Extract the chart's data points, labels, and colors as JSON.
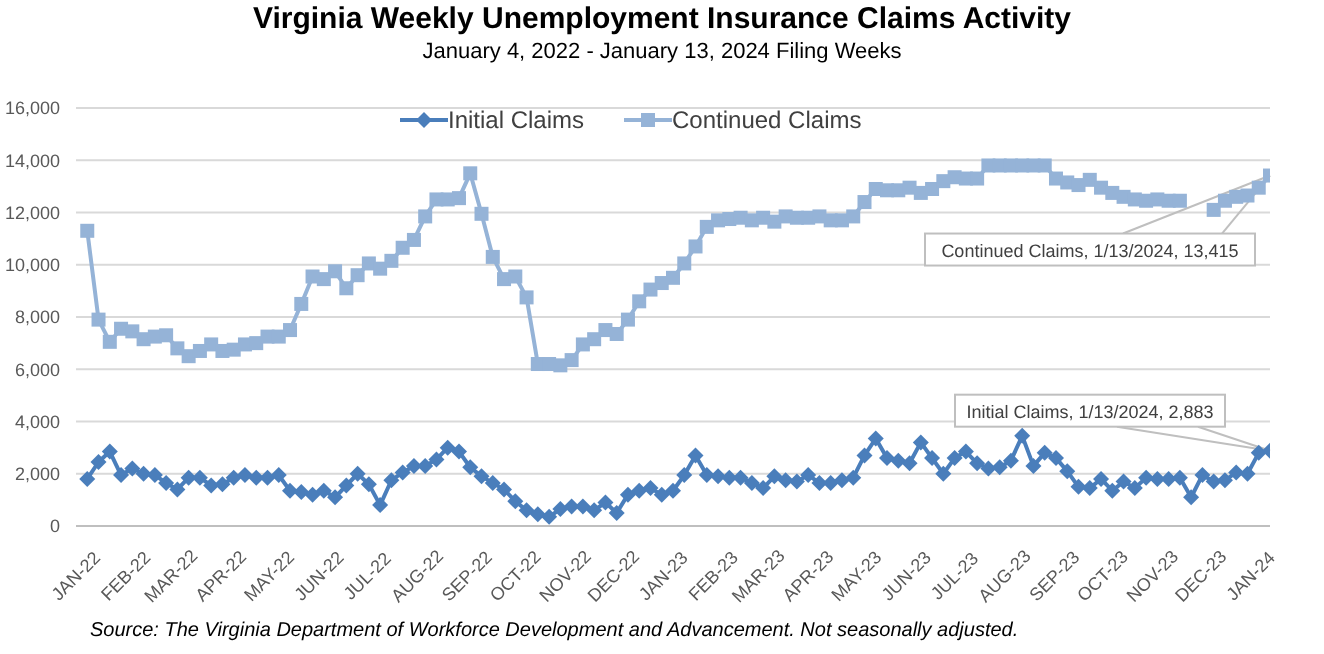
{
  "chart_data": {
    "type": "line",
    "title": "Virginia Weekly Unemployment Insurance Claims Activity",
    "subtitle": "January 4, 2022 - January 13, 2024 Filing Weeks",
    "x": [
      "2022-01-08",
      "2022-01-15",
      "2022-01-22",
      "2022-01-29",
      "2022-02-05",
      "2022-02-12",
      "2022-02-19",
      "2022-02-26",
      "2022-03-05",
      "2022-03-12",
      "2022-03-19",
      "2022-03-26",
      "2022-04-02",
      "2022-04-09",
      "2022-04-16",
      "2022-04-23",
      "2022-04-30",
      "2022-05-07",
      "2022-05-14",
      "2022-05-21",
      "2022-05-28",
      "2022-06-04",
      "2022-06-11",
      "2022-06-18",
      "2022-06-25",
      "2022-07-02",
      "2022-07-09",
      "2022-07-16",
      "2022-07-23",
      "2022-07-30",
      "2022-08-06",
      "2022-08-13",
      "2022-08-20",
      "2022-08-27",
      "2022-09-03",
      "2022-09-10",
      "2022-09-17",
      "2022-09-24",
      "2022-10-01",
      "2022-10-08",
      "2022-10-15",
      "2022-10-22",
      "2022-10-29",
      "2022-11-05",
      "2022-11-12",
      "2022-11-19",
      "2022-11-26",
      "2022-12-03",
      "2022-12-10",
      "2022-12-17",
      "2022-12-24",
      "2022-12-31",
      "2023-01-07",
      "2023-01-14",
      "2023-01-21",
      "2023-01-28",
      "2023-02-04",
      "2023-02-11",
      "2023-02-18",
      "2023-02-25",
      "2023-03-04",
      "2023-03-11",
      "2023-03-18",
      "2023-03-25",
      "2023-04-01",
      "2023-04-08",
      "2023-04-15",
      "2023-04-22",
      "2023-04-29",
      "2023-05-06",
      "2023-05-13",
      "2023-05-20",
      "2023-05-27",
      "2023-06-03",
      "2023-06-10",
      "2023-06-17",
      "2023-06-24",
      "2023-07-01",
      "2023-07-08",
      "2023-07-15",
      "2023-07-22",
      "2023-07-29",
      "2023-08-05",
      "2023-08-12",
      "2023-08-19",
      "2023-08-26",
      "2023-09-02",
      "2023-09-09",
      "2023-09-16",
      "2023-09-23",
      "2023-09-30",
      "2023-10-07",
      "2023-10-14",
      "2023-10-21",
      "2023-10-28",
      "2023-11-04",
      "2023-11-11",
      "2023-11-18",
      "2023-11-25",
      "2023-12-02",
      "2023-12-09",
      "2023-12-16",
      "2023-12-23",
      "2023-12-30",
      "2024-01-06",
      "2024-01-13"
    ],
    "series": [
      {
        "name": "Initial Claims",
        "color": "#4a7ebb",
        "marker": "diamond",
        "values": [
          1800,
          2450,
          2850,
          1950,
          2200,
          2000,
          1950,
          1650,
          1400,
          1850,
          1850,
          1550,
          1600,
          1850,
          1950,
          1850,
          1850,
          1950,
          1350,
          1300,
          1200,
          1350,
          1100,
          1550,
          2000,
          1600,
          800,
          1750,
          2050,
          2300,
          2300,
          2550,
          3000,
          2850,
          2250,
          1900,
          1650,
          1400,
          950,
          600,
          450,
          350,
          650,
          750,
          750,
          600,
          900,
          500,
          1200,
          1350,
          1450,
          1200,
          1350,
          1950,
          2700,
          1950,
          1900,
          1850,
          1850,
          1650,
          1450,
          1900,
          1750,
          1700,
          1950,
          1650,
          1650,
          1750,
          1850,
          2700,
          3350,
          2600,
          2500,
          2400,
          3200,
          2600,
          2000,
          2600,
          2850,
          2400,
          2200,
          2250,
          2500,
          3450,
          2300,
          2800,
          2600,
          2100,
          1500,
          1450,
          1800,
          1350,
          1700,
          1450,
          1850,
          1800,
          1800,
          1850,
          1100,
          1950,
          1700,
          1750,
          2050,
          2000,
          2800,
          2883
        ]
      },
      {
        "name": "Continued Claims",
        "color": "#95b3d7",
        "marker": "square",
        "values": [
          11300,
          7900,
          7050,
          7550,
          7450,
          7150,
          7250,
          7300,
          6800,
          6500,
          6700,
          6950,
          6700,
          6750,
          6950,
          7000,
          7250,
          7250,
          7500,
          8500,
          9550,
          9450,
          9750,
          9100,
          9600,
          10050,
          9850,
          10150,
          10650,
          10950,
          11850,
          12500,
          12500,
          12550,
          13500,
          11950,
          10300,
          9450,
          9550,
          8750,
          6200,
          6200,
          6150,
          6350,
          6950,
          7150,
          7500,
          7350,
          7900,
          8600,
          9050,
          9300,
          9500,
          10050,
          10700,
          11450,
          11700,
          11750,
          11800,
          11700,
          11800,
          11650,
          11850,
          11800,
          11800,
          11850,
          11700,
          11700,
          11850,
          12400,
          12900,
          12850,
          12850,
          12950,
          12750,
          12900,
          13200,
          13350,
          13300,
          13300,
          13800,
          13800,
          13800,
          13800,
          13800,
          13800,
          13300,
          13150,
          13050,
          13250,
          12950,
          12750,
          12600,
          12500,
          12450,
          12500,
          12450,
          12450,
          null,
          null,
          12100,
          12450,
          12600,
          12650,
          12950,
          13415
        ]
      }
    ],
    "xlim": [
      "2022-01-01",
      "2024-01-13"
    ],
    "xticks": [
      {
        "value": "2022-01-01",
        "label": "JAN-22"
      },
      {
        "value": "2022-02-01",
        "label": "FEB-22"
      },
      {
        "value": "2022-03-01",
        "label": "MAR-22"
      },
      {
        "value": "2022-04-01",
        "label": "APR-22"
      },
      {
        "value": "2022-05-01",
        "label": "MAY-22"
      },
      {
        "value": "2022-06-01",
        "label": "JUN-22"
      },
      {
        "value": "2022-07-01",
        "label": "JUL-22"
      },
      {
        "value": "2022-08-01",
        "label": "AUG-22"
      },
      {
        "value": "2022-09-01",
        "label": "SEP-22"
      },
      {
        "value": "2022-10-01",
        "label": "OCT-22"
      },
      {
        "value": "2022-11-01",
        "label": "NOV-22"
      },
      {
        "value": "2022-12-01",
        "label": "DEC-22"
      },
      {
        "value": "2023-01-01",
        "label": "JAN-23"
      },
      {
        "value": "2023-02-01",
        "label": "FEB-23"
      },
      {
        "value": "2023-03-01",
        "label": "MAR-23"
      },
      {
        "value": "2023-04-01",
        "label": "APR-23"
      },
      {
        "value": "2023-05-01",
        "label": "MAY-23"
      },
      {
        "value": "2023-06-01",
        "label": "JUN-23"
      },
      {
        "value": "2023-07-01",
        "label": "JUL-23"
      },
      {
        "value": "2023-08-01",
        "label": "AUG-23"
      },
      {
        "value": "2023-09-01",
        "label": "SEP-23"
      },
      {
        "value": "2023-10-01",
        "label": "OCT-23"
      },
      {
        "value": "2023-11-01",
        "label": "NOV-23"
      },
      {
        "value": "2023-12-01",
        "label": "DEC-23"
      },
      {
        "value": "2024-01-01",
        "label": "JAN-24"
      }
    ],
    "ylim": [
      0,
      16000
    ],
    "yticks": [
      {
        "value": 0,
        "label": "0"
      },
      {
        "value": 2000,
        "label": "2,000"
      },
      {
        "value": 4000,
        "label": "4,000"
      },
      {
        "value": 6000,
        "label": "6,000"
      },
      {
        "value": 8000,
        "label": "8,000"
      },
      {
        "value": 10000,
        "label": "10,000"
      },
      {
        "value": 12000,
        "label": "12,000"
      },
      {
        "value": 14000,
        "label": "14,000"
      },
      {
        "value": 16000,
        "label": "16,000"
      }
    ],
    "grid": "y",
    "legend": "top",
    "line_style": "solid",
    "annotations": [
      {
        "text": "Continued Claims, 1/13/2024, 13,415",
        "x": "2024-01-13",
        "y": 13415
      },
      {
        "text": "Initial Claims, 1/13/2024, 2,883",
        "x": "2024-01-13",
        "y": 2883
      },
      "Source: The Virginia Department of Workforce Development and Advancement. Not seasonally adjusted."
    ]
  }
}
